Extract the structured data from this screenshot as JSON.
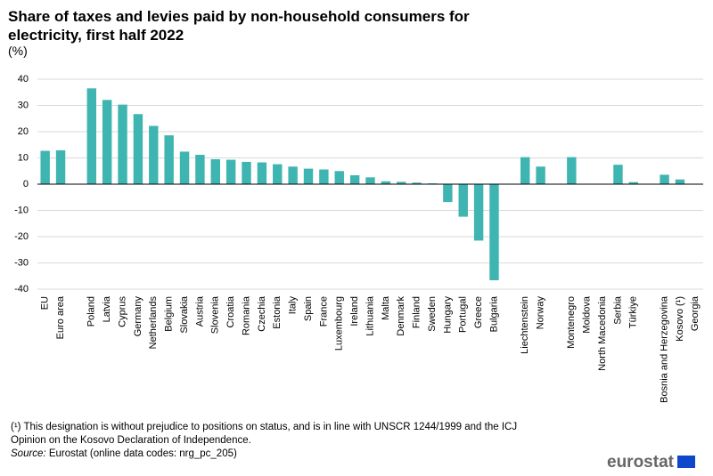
{
  "chart_data": {
    "type": "bar",
    "title": "Share of taxes and levies paid by non-household consumers for electricity, first half 2022",
    "unit": "(%)",
    "categories": [
      "EU",
      "Euro area",
      null,
      "Poland",
      "Latvia",
      "Cyprus",
      "Germany",
      "Netherlands",
      "Belgium",
      "Slovakia",
      "Austria",
      "Slovenia",
      "Croatia",
      "Romania",
      "Czechia",
      "Estonia",
      "Italy",
      "Spain",
      "France",
      "Luxembourg",
      "Ireland",
      "Lithuania",
      "Malta",
      "Denmark",
      "Finland",
      "Sweden",
      "Hungary",
      "Portugal",
      "Greece",
      "Bulgaria",
      null,
      "Liechtenstein",
      "Norway",
      null,
      "Montenegro",
      "Moldova",
      "North Macedonia",
      "Serbia",
      "Türkiye",
      null,
      "Bosnia and Herzegovina",
      "Kosovo (¹)",
      "Georgia"
    ],
    "values": [
      12.7,
      12.9,
      null,
      36.5,
      32.1,
      30.3,
      26.7,
      22.2,
      18.6,
      12.4,
      11.2,
      9.5,
      9.3,
      8.5,
      8.3,
      7.6,
      6.7,
      5.9,
      5.6,
      5.0,
      3.4,
      2.6,
      1.1,
      0.9,
      0.6,
      0.3,
      -6.8,
      -12.4,
      -21.5,
      -36.6,
      null,
      10.3,
      6.7,
      null,
      10.3,
      0,
      0,
      7.4,
      0.8,
      null,
      3.6,
      1.8,
      0
    ],
    "color": "#3eb5b1",
    "ylim": [
      -40,
      40
    ],
    "yticks": [
      -40,
      -30,
      -20,
      -10,
      0,
      10,
      20,
      30,
      40
    ],
    "grid": true
  },
  "footnote": "(¹) This designation is without prejudice to positions on status, and is in line with UNSCR 1244/1999 and the ICJ Opinion on the Kosovo Declaration of Independence.",
  "source": {
    "label": "Source:",
    "text": "Eurostat (online data codes: nrg_pc_205)"
  },
  "logo": "eurostat"
}
